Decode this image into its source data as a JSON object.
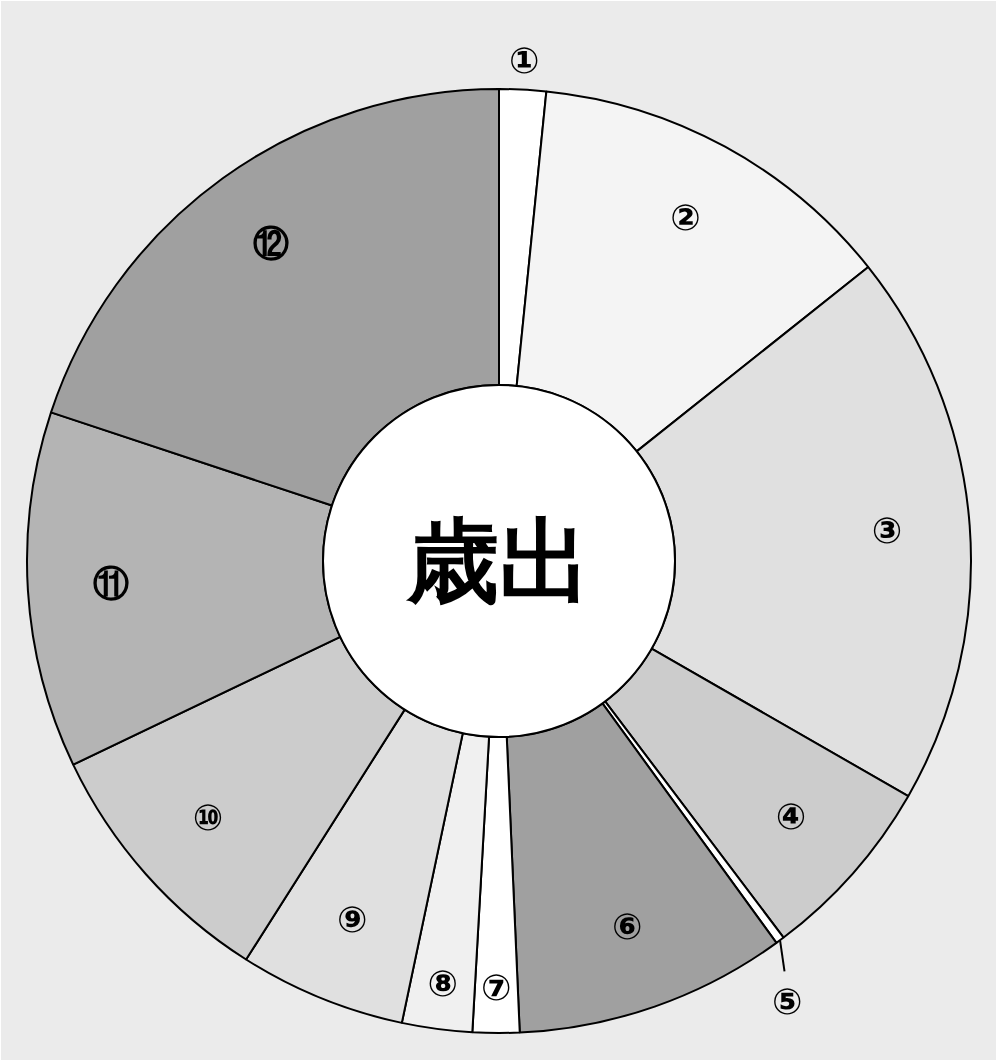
{
  "chart_data": {
    "type": "donut",
    "title": "歳出",
    "categories": [
      "①",
      "②",
      "③",
      "④",
      "⑤",
      "⑥",
      "⑦",
      "⑧",
      "⑨",
      "⑩",
      "⑪",
      "⑫"
    ],
    "values": [
      1.6,
      12.7,
      19.0,
      6.4,
      0.3,
      9.3,
      1.6,
      2.4,
      5.7,
      8.9,
      12.2,
      19.9
    ],
    "colors": [
      "#ffffff",
      "#f4f4f4",
      "#e0e0e0",
      "#cccccc",
      "#ffffff",
      "#a0a0a0",
      "#ffffff",
      "#f0f0f0",
      "#e0e0e0",
      "#cccccc",
      "#b4b4b4",
      "#a0a0a0"
    ]
  }
}
